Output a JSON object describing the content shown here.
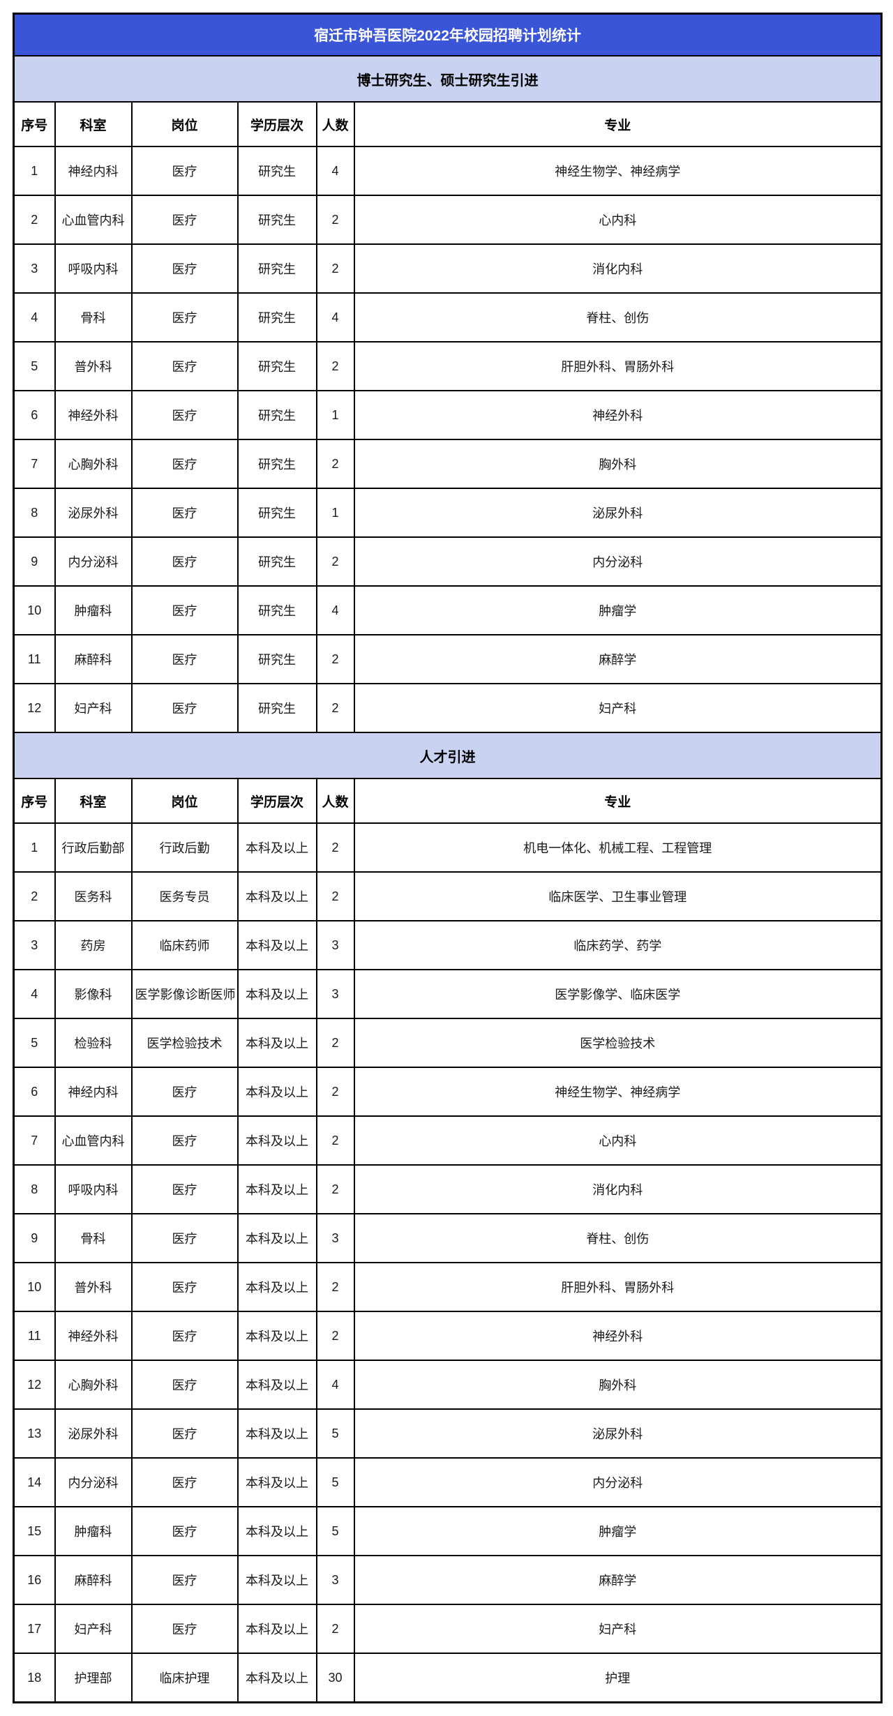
{
  "title": "宿迁市钟吾医院2022年校园招聘计划统计",
  "colors": {
    "title_bg": "#3A55D8",
    "title_text": "#FFFFFF",
    "section_bg": "#C9D3F1",
    "border": "#000000"
  },
  "columns": [
    "序号",
    "科室",
    "岗位",
    "学历层次",
    "人数",
    "专业"
  ],
  "sections": [
    {
      "header": "博士研究生、硕士研究生引进",
      "rows": [
        [
          "1",
          "神经内科",
          "医疗",
          "研究生",
          "4",
          "神经生物学、神经病学"
        ],
        [
          "2",
          "心血管内科",
          "医疗",
          "研究生",
          "2",
          "心内科"
        ],
        [
          "3",
          "呼吸内科",
          "医疗",
          "研究生",
          "2",
          "消化内科"
        ],
        [
          "4",
          "骨科",
          "医疗",
          "研究生",
          "4",
          "脊柱、创伤"
        ],
        [
          "5",
          "普外科",
          "医疗",
          "研究生",
          "2",
          "肝胆外科、胃肠外科"
        ],
        [
          "6",
          "神经外科",
          "医疗",
          "研究生",
          "1",
          "神经外科"
        ],
        [
          "7",
          "心胸外科",
          "医疗",
          "研究生",
          "2",
          "胸外科"
        ],
        [
          "8",
          "泌尿外科",
          "医疗",
          "研究生",
          "1",
          "泌尿外科"
        ],
        [
          "9",
          "内分泌科",
          "医疗",
          "研究生",
          "2",
          "内分泌科"
        ],
        [
          "10",
          "肿瘤科",
          "医疗",
          "研究生",
          "4",
          "肿瘤学"
        ],
        [
          "11",
          "麻醉科",
          "医疗",
          "研究生",
          "2",
          "麻醉学"
        ],
        [
          "12",
          "妇产科",
          "医疗",
          "研究生",
          "2",
          "妇产科"
        ]
      ]
    },
    {
      "header": "人才引进",
      "rows": [
        [
          "1",
          "行政后勤部",
          "行政后勤",
          "本科及以上",
          "2",
          "机电一体化、机械工程、工程管理"
        ],
        [
          "2",
          "医务科",
          "医务专员",
          "本科及以上",
          "2",
          "临床医学、卫生事业管理"
        ],
        [
          "3",
          "药房",
          "临床药师",
          "本科及以上",
          "3",
          "临床药学、药学"
        ],
        [
          "4",
          "影像科",
          "医学影像诊断医师",
          "本科及以上",
          "3",
          "医学影像学、临床医学"
        ],
        [
          "5",
          "检验科",
          "医学检验技术",
          "本科及以上",
          "2",
          "医学检验技术"
        ],
        [
          "6",
          "神经内科",
          "医疗",
          "本科及以上",
          "2",
          "神经生物学、神经病学"
        ],
        [
          "7",
          "心血管内科",
          "医疗",
          "本科及以上",
          "2",
          "心内科"
        ],
        [
          "8",
          "呼吸内科",
          "医疗",
          "本科及以上",
          "2",
          "消化内科"
        ],
        [
          "9",
          "骨科",
          "医疗",
          "本科及以上",
          "3",
          "脊柱、创伤"
        ],
        [
          "10",
          "普外科",
          "医疗",
          "本科及以上",
          "2",
          "肝胆外科、胃肠外科"
        ],
        [
          "11",
          "神经外科",
          "医疗",
          "本科及以上",
          "2",
          "神经外科"
        ],
        [
          "12",
          "心胸外科",
          "医疗",
          "本科及以上",
          "4",
          "胸外科"
        ],
        [
          "13",
          "泌尿外科",
          "医疗",
          "本科及以上",
          "5",
          "泌尿外科"
        ],
        [
          "14",
          "内分泌科",
          "医疗",
          "本科及以上",
          "5",
          "内分泌科"
        ],
        [
          "15",
          "肿瘤科",
          "医疗",
          "本科及以上",
          "5",
          "肿瘤学"
        ],
        [
          "16",
          "麻醉科",
          "医疗",
          "本科及以上",
          "3",
          "麻醉学"
        ],
        [
          "17",
          "妇产科",
          "医疗",
          "本科及以上",
          "2",
          "妇产科"
        ],
        [
          "18",
          "护理部",
          "临床护理",
          "本科及以上",
          "30",
          "护理"
        ]
      ]
    }
  ]
}
